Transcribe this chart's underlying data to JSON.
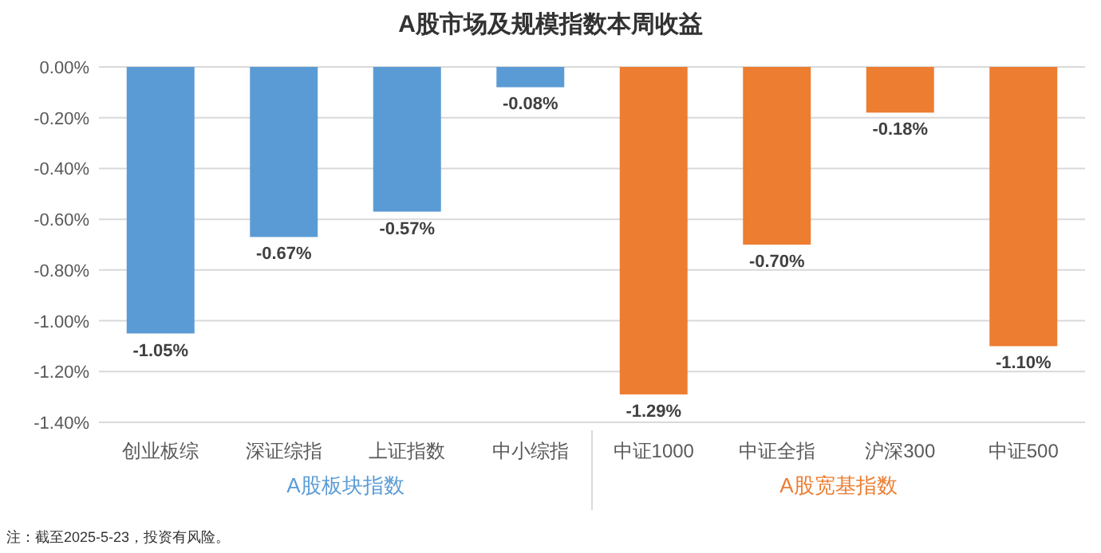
{
  "chart_data": {
    "type": "bar",
    "title": "A股市场及规模指数本周收益",
    "categories": [
      "创业板综",
      "深证综指",
      "上证指数",
      "中小综指",
      "中证1000",
      "中证全指",
      "沪深300",
      "中证500"
    ],
    "values": [
      -1.05,
      -0.67,
      -0.57,
      -0.08,
      -1.29,
      -0.7,
      -0.18,
      -1.1
    ],
    "colors": [
      "#5b9bd5",
      "#5b9bd5",
      "#5b9bd5",
      "#5b9bd5",
      "#ed7d31",
      "#ed7d31",
      "#ed7d31",
      "#ed7d31"
    ],
    "value_labels": [
      "-1.05%",
      "-0.67%",
      "-0.57%",
      "-0.08%",
      "-1.29%",
      "-0.70%",
      "-0.18%",
      "-1.10%"
    ],
    "ylim": [
      -1.4,
      0
    ],
    "yticks": [
      {
        "value": 0,
        "label": "0.00%"
      },
      {
        "value": -0.2,
        "label": "-0.20%"
      },
      {
        "value": -0.4,
        "label": "-0.40%"
      },
      {
        "value": -0.6,
        "label": "-0.60%"
      },
      {
        "value": -0.8,
        "label": "-0.80%"
      },
      {
        "value": -1.0,
        "label": "-1.00%"
      },
      {
        "value": -1.2,
        "label": "-1.20%"
      },
      {
        "value": -1.4,
        "label": "-1.40%"
      }
    ],
    "grid": "y",
    "annotations": [
      "A股板块指数",
      "A股宽基指数",
      "注：截至2025-5-23，投资有风险。"
    ]
  }
}
